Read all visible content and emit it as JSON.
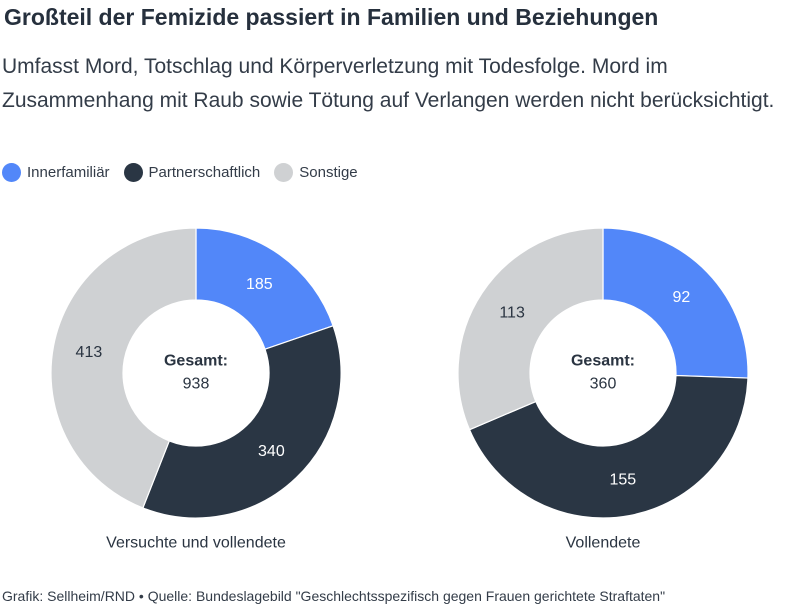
{
  "title": "Großteil der Femizide passiert in Familien und Beziehungen",
  "subtitle": "Umfasst Mord, Totschlag und Körperverletzung mit Todesfolge. Mord im Zusammenhang mit Raub sowie Tötung auf Verlangen werden nicht berücksichtigt.",
  "legend": [
    {
      "label": "Innerfamiliär",
      "color": "#5287f9"
    },
    {
      "label": "Partnerschaftlich",
      "color": "#2a3644"
    },
    {
      "label": "Sonstige",
      "color": "#cfd1d3"
    }
  ],
  "chart_data": [
    {
      "type": "pie",
      "variant": "donut",
      "caption": "Versuchte und vollendete",
      "center_label": "Gesamt:",
      "center_value": "938",
      "slices": [
        {
          "label": "Innerfamiliär",
          "value": 185,
          "color": "#5287f9",
          "label_color": "#ffffff"
        },
        {
          "label": "Partnerschaftlich",
          "value": 340,
          "color": "#2a3644",
          "label_color": "#ffffff"
        },
        {
          "label": "Sonstige",
          "value": 413,
          "color": "#cfd1d3",
          "label_color": "#2a3441"
        }
      ]
    },
    {
      "type": "pie",
      "variant": "donut",
      "caption": "Vollendete",
      "center_label": "Gesamt:",
      "center_value": "360",
      "slices": [
        {
          "label": "Innerfamiliär",
          "value": 92,
          "color": "#5287f9",
          "label_color": "#ffffff"
        },
        {
          "label": "Partnerschaftlich",
          "value": 155,
          "color": "#2a3644",
          "label_color": "#ffffff"
        },
        {
          "label": "Sonstige",
          "value": 113,
          "color": "#cfd1d3",
          "label_color": "#2a3441"
        }
      ]
    }
  ],
  "footer": "Grafik: Sellheim/RND • Quelle: Bundeslagebild \"Geschlechtsspezifisch gegen Frauen gerichtete Straftaten\""
}
